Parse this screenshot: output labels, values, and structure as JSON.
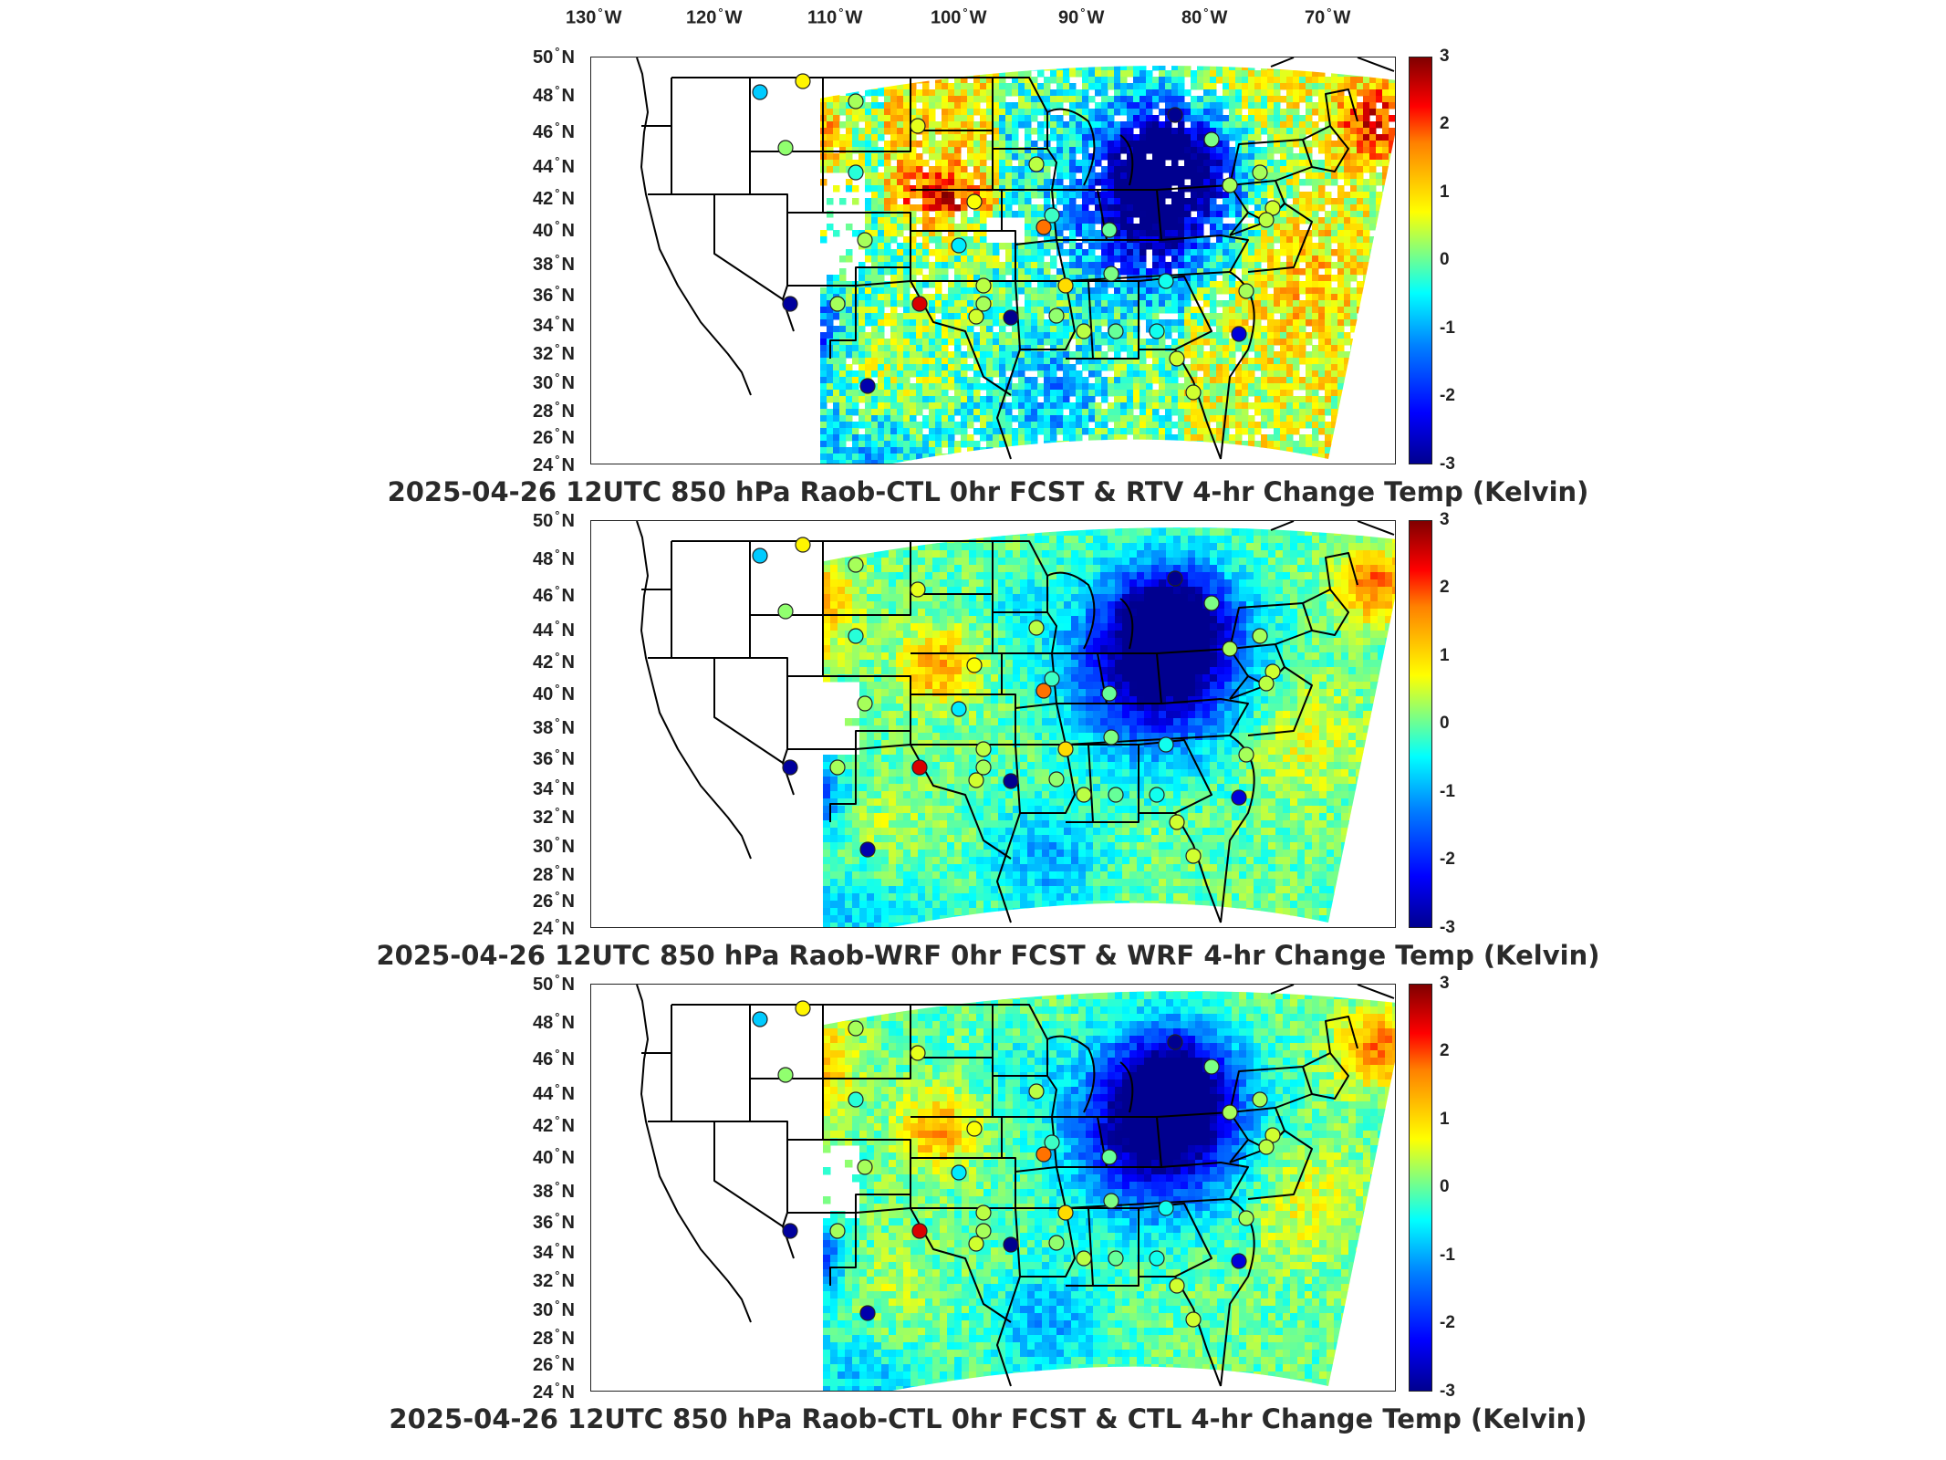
{
  "longitude_labels": [
    {
      "num": "130",
      "unit": "W"
    },
    {
      "num": "120",
      "unit": "W"
    },
    {
      "num": "110",
      "unit": "W"
    },
    {
      "num": "100",
      "unit": "W"
    },
    {
      "num": "90",
      "unit": "W"
    },
    {
      "num": "80",
      "unit": "W"
    },
    {
      "num": "70",
      "unit": "W"
    }
  ],
  "latitude_labels": [
    {
      "num": "50",
      "unit": "N"
    },
    {
      "num": "48",
      "unit": "N"
    },
    {
      "num": "46",
      "unit": "N"
    },
    {
      "num": "44",
      "unit": "N"
    },
    {
      "num": "42",
      "unit": "N"
    },
    {
      "num": "40",
      "unit": "N"
    },
    {
      "num": "38",
      "unit": "N"
    },
    {
      "num": "36",
      "unit": "N"
    },
    {
      "num": "34",
      "unit": "N"
    },
    {
      "num": "32",
      "unit": "N"
    },
    {
      "num": "30",
      "unit": "N"
    },
    {
      "num": "28",
      "unit": "N"
    },
    {
      "num": "26",
      "unit": "N"
    },
    {
      "num": "24",
      "unit": "N"
    }
  ],
  "colorbar_ticks": [
    "3",
    "2",
    "1",
    "0",
    "-1",
    "-2",
    "-3"
  ],
  "colors": {
    "scale_min": "#00008f",
    "scale_mid": "#00ffff",
    "scale_max": "#800000",
    "borders": "#000000"
  },
  "panels": [
    {
      "title": "2025-04-26 12UTC 850 hPa Raob-CTL 0hr FCST & RTV 4-hr Change Temp (Kelvin)"
    },
    {
      "title": "2025-04-26 12UTC 850 hPa Raob-WRF 0hr FCST & WRF 4-hr Change Temp (Kelvin)"
    },
    {
      "title": "2025-04-26 12UTC 850 hPa Raob-CTL 0hr FCST & CTL 4-hr Change Temp (Kelvin)"
    }
  ]
}
